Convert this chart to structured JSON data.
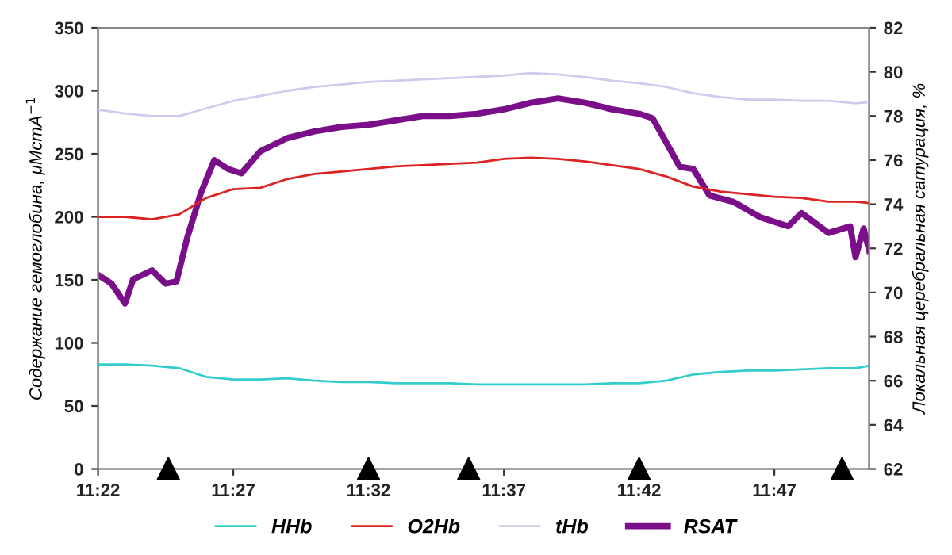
{
  "chart_data": {
    "type": "line",
    "ylabel": "Содержание гемоглобина, μMстA$^{−1}$",
    "y2label": "Локальная церебральная сатурация, %",
    "x": [
      11.3667,
      11.3833,
      11.4,
      11.4167,
      11.4333,
      11.45,
      11.4667,
      11.4833,
      11.5,
      11.5167,
      11.5333,
      11.55,
      11.5667,
      11.5833,
      11.6,
      11.6167,
      11.6333,
      11.65,
      11.6667,
      11.6833,
      11.7,
      11.7167,
      11.7333,
      11.75,
      11.7667,
      11.7833,
      11.8,
      11.8167,
      11.8333,
      11.8417
    ],
    "series": [
      {
        "name": "HHb",
        "color": "#33cccc",
        "values": [
          83,
          83,
          82,
          80,
          73,
          71,
          71,
          72,
          70,
          69,
          69,
          68,
          68,
          68,
          67,
          67,
          67,
          67,
          67,
          68,
          68,
          70,
          75,
          77,
          78,
          78,
          79,
          80,
          80,
          82
        ]
      },
      {
        "name": "O2Hb",
        "color": "#dd2222",
        "values": [
          200,
          200,
          198,
          202,
          215,
          222,
          223,
          230,
          234,
          236,
          238,
          240,
          241,
          242,
          243,
          246,
          247,
          246,
          244,
          241,
          238,
          232,
          224,
          220,
          218,
          216,
          215,
          212,
          212,
          211
        ]
      },
      {
        "name": "tHb",
        "color": "#ccccee",
        "values": [
          285,
          282,
          280,
          280,
          286,
          292,
          296,
          300,
          303,
          305,
          307,
          308,
          309,
          310,
          311,
          312,
          314,
          313,
          311,
          308,
          306,
          303,
          298,
          295,
          293,
          293,
          292,
          292,
          290,
          291
        ]
      },
      {
        "name": "RSAT",
        "color": "#7b0f8a",
        "axis": "y2",
        "x": [
          11.3667,
          11.375,
          11.3833,
          11.3883,
          11.4,
          11.4083,
          11.415,
          11.4217,
          11.43,
          11.4383,
          11.4467,
          11.455,
          11.4667,
          11.4833,
          11.5,
          11.5167,
          11.5333,
          11.55,
          11.5667,
          11.5833,
          11.6,
          11.6167,
          11.6333,
          11.65,
          11.6667,
          11.6833,
          11.7,
          11.7083,
          11.7167,
          11.725,
          11.7333,
          11.7433,
          11.7583,
          11.775,
          11.7917,
          11.8,
          11.8167,
          11.83,
          11.8333,
          11.8383,
          11.8417
        ],
        "values": [
          70.8,
          70.4,
          69.5,
          70.6,
          71.0,
          70.4,
          70.5,
          72.5,
          74.5,
          76.0,
          75.6,
          75.4,
          76.4,
          77.0,
          77.3,
          77.5,
          77.6,
          77.8,
          78.0,
          78.0,
          78.1,
          78.3,
          78.6,
          78.8,
          78.6,
          78.3,
          78.1,
          77.9,
          76.8,
          75.7,
          75.6,
          74.4,
          74.1,
          73.4,
          73.0,
          73.6,
          72.7,
          73.0,
          71.6,
          72.9,
          71.9
        ]
      },
      {
        "type": "scatter",
        "color": "#000000",
        "marker": "triangle",
        "x": [
          11.41,
          11.5333,
          11.595,
          11.7,
          11.825
        ],
        "values": [
          0,
          0,
          0,
          0,
          0
        ]
      }
    ],
    "xlim": [
      11.3667,
      11.8417
    ],
    "xticks": [
      {
        "value": 11.3667,
        "label": "11:22"
      },
      {
        "value": 11.45,
        "label": "11:27"
      },
      {
        "value": 11.5333,
        "label": "11:32"
      },
      {
        "value": 11.6167,
        "label": "11:37"
      },
      {
        "value": 11.7,
        "label": "11:42"
      },
      {
        "value": 11.7833,
        "label": "11:47"
      }
    ],
    "ylim": [
      0,
      350
    ],
    "yticks": [
      0,
      50,
      100,
      150,
      200,
      250,
      300,
      350
    ],
    "y2lim": [
      62,
      82
    ],
    "y2ticks": [
      62,
      64,
      66,
      68,
      70,
      72,
      74,
      76,
      78,
      80,
      82
    ],
    "grid": false,
    "legend": "bottom",
    "marker": "none",
    "line_style": "solid"
  }
}
